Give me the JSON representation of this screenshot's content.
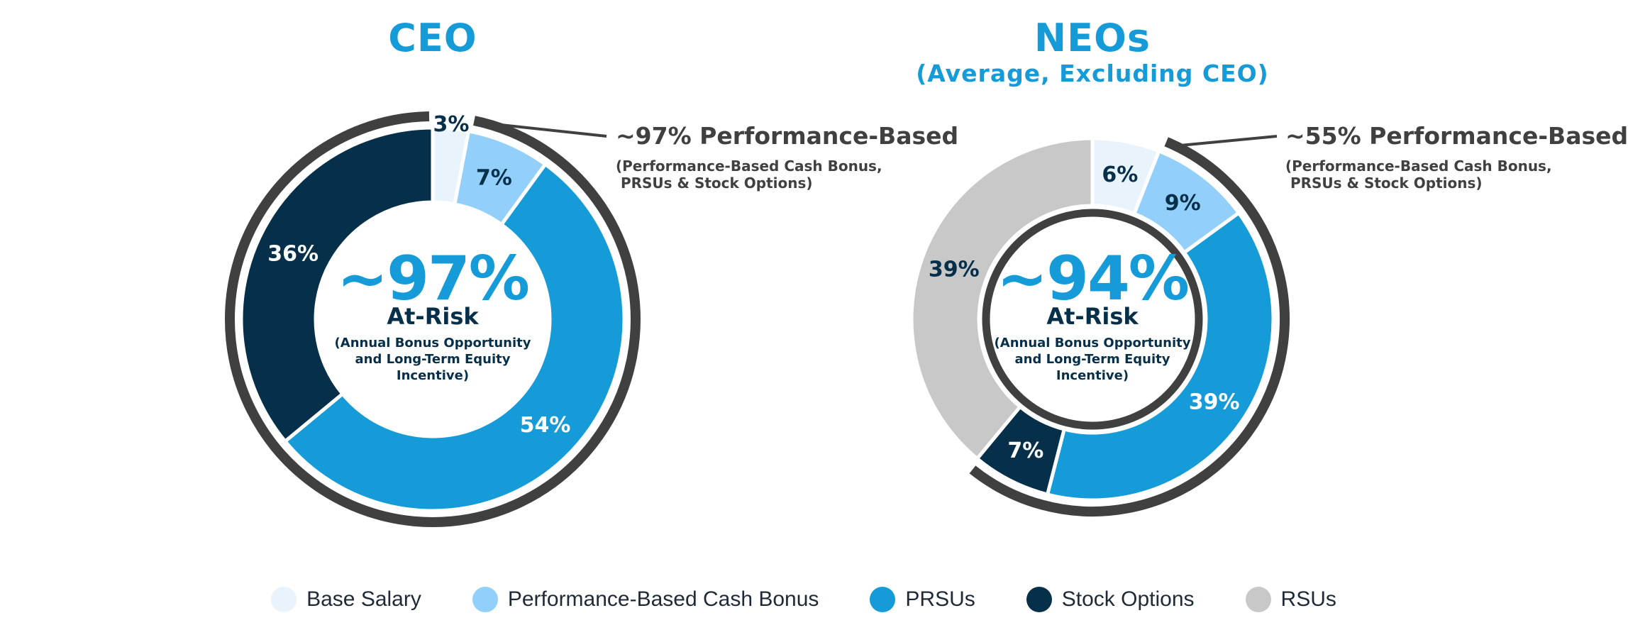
{
  "colors": {
    "base_salary": "#e8f3fc",
    "perf_cash_bonus": "#92d0fb",
    "prsus": "#169bd9",
    "stock_options": "#062f49",
    "rsus": "#c8c8c8",
    "ring": "#404040",
    "title": "#169bd9",
    "dark_text": "#062f49",
    "gray_text": "#404040"
  },
  "legend": [
    {
      "label": "Base Salary",
      "color": "#e8f3fc"
    },
    {
      "label": "Performance-Based Cash Bonus",
      "color": "#92d0fb"
    },
    {
      "label": "PRSUs",
      "color": "#169bd9"
    },
    {
      "label": "Stock Options",
      "color": "#062f49"
    },
    {
      "label": "RSUs",
      "color": "#c8c8c8"
    }
  ],
  "chart_data": [
    {
      "type": "pie",
      "title": "CEO",
      "subtitle": "",
      "categories": [
        "Base Salary",
        "Performance-Based Cash Bonus",
        "PRSUs",
        "Stock Options"
      ],
      "values": [
        3,
        7,
        54,
        36
      ],
      "labels": [
        "3%",
        "7%",
        "54%",
        "36%"
      ],
      "center_value": "~97%",
      "center_label": "At-Risk",
      "center_note": "(Annual Bonus Opportunity\nand Long-Term Equity\nIncentive)",
      "performance_based_value": "~97% Performance-Based",
      "performance_based_note": "(Performance-Based Cash Bonus,\n PRSUs & Stock Options)",
      "performance_based_share": 97
    },
    {
      "type": "pie",
      "title": "NEOs",
      "subtitle": "(Average, Excluding CEO)",
      "categories": [
        "Base Salary",
        "Performance-Based Cash Bonus",
        "PRSUs",
        "Stock Options",
        "RSUs"
      ],
      "values": [
        6,
        9,
        39,
        7,
        39
      ],
      "labels": [
        "6%",
        "9%",
        "39%",
        "7%",
        "39%"
      ],
      "center_value": "~94%",
      "center_label": "At-Risk",
      "center_note": "(Annual Bonus Opportunity\nand Long-Term Equity\nIncentive)",
      "performance_based_value": "~55% Performance-Based",
      "performance_based_note": "(Performance-Based Cash Bonus,\n PRSUs & Stock Options)",
      "performance_based_share": 55
    }
  ]
}
